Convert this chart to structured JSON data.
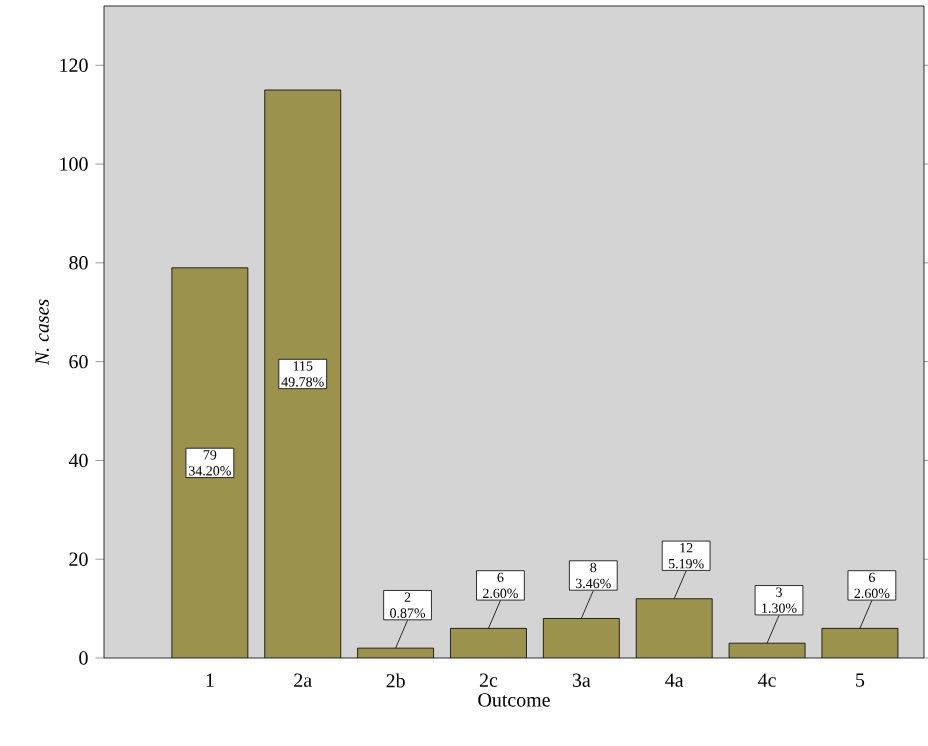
{
  "chart_data": {
    "type": "bar",
    "xlabel": "Outcome",
    "ylabel": "N. cases",
    "categories": [
      "1",
      "2a",
      "2b",
      "2c",
      "3a",
      "4a",
      "4c",
      "5"
    ],
    "values": [
      79,
      115,
      2,
      6,
      8,
      12,
      3,
      6
    ],
    "value_labels": [
      "79 34.20%",
      "115 49.78%",
      "2 0.87%",
      "6 2.60%",
      "8 3.46%",
      "12 5.19%",
      "3 1.30%",
      "6 2.60%"
    ],
    "color": "#9b924e",
    "ylim": [
      0,
      132
    ],
    "yticks": [
      0,
      20,
      40,
      60,
      80,
      100,
      120
    ],
    "grid": false
  }
}
